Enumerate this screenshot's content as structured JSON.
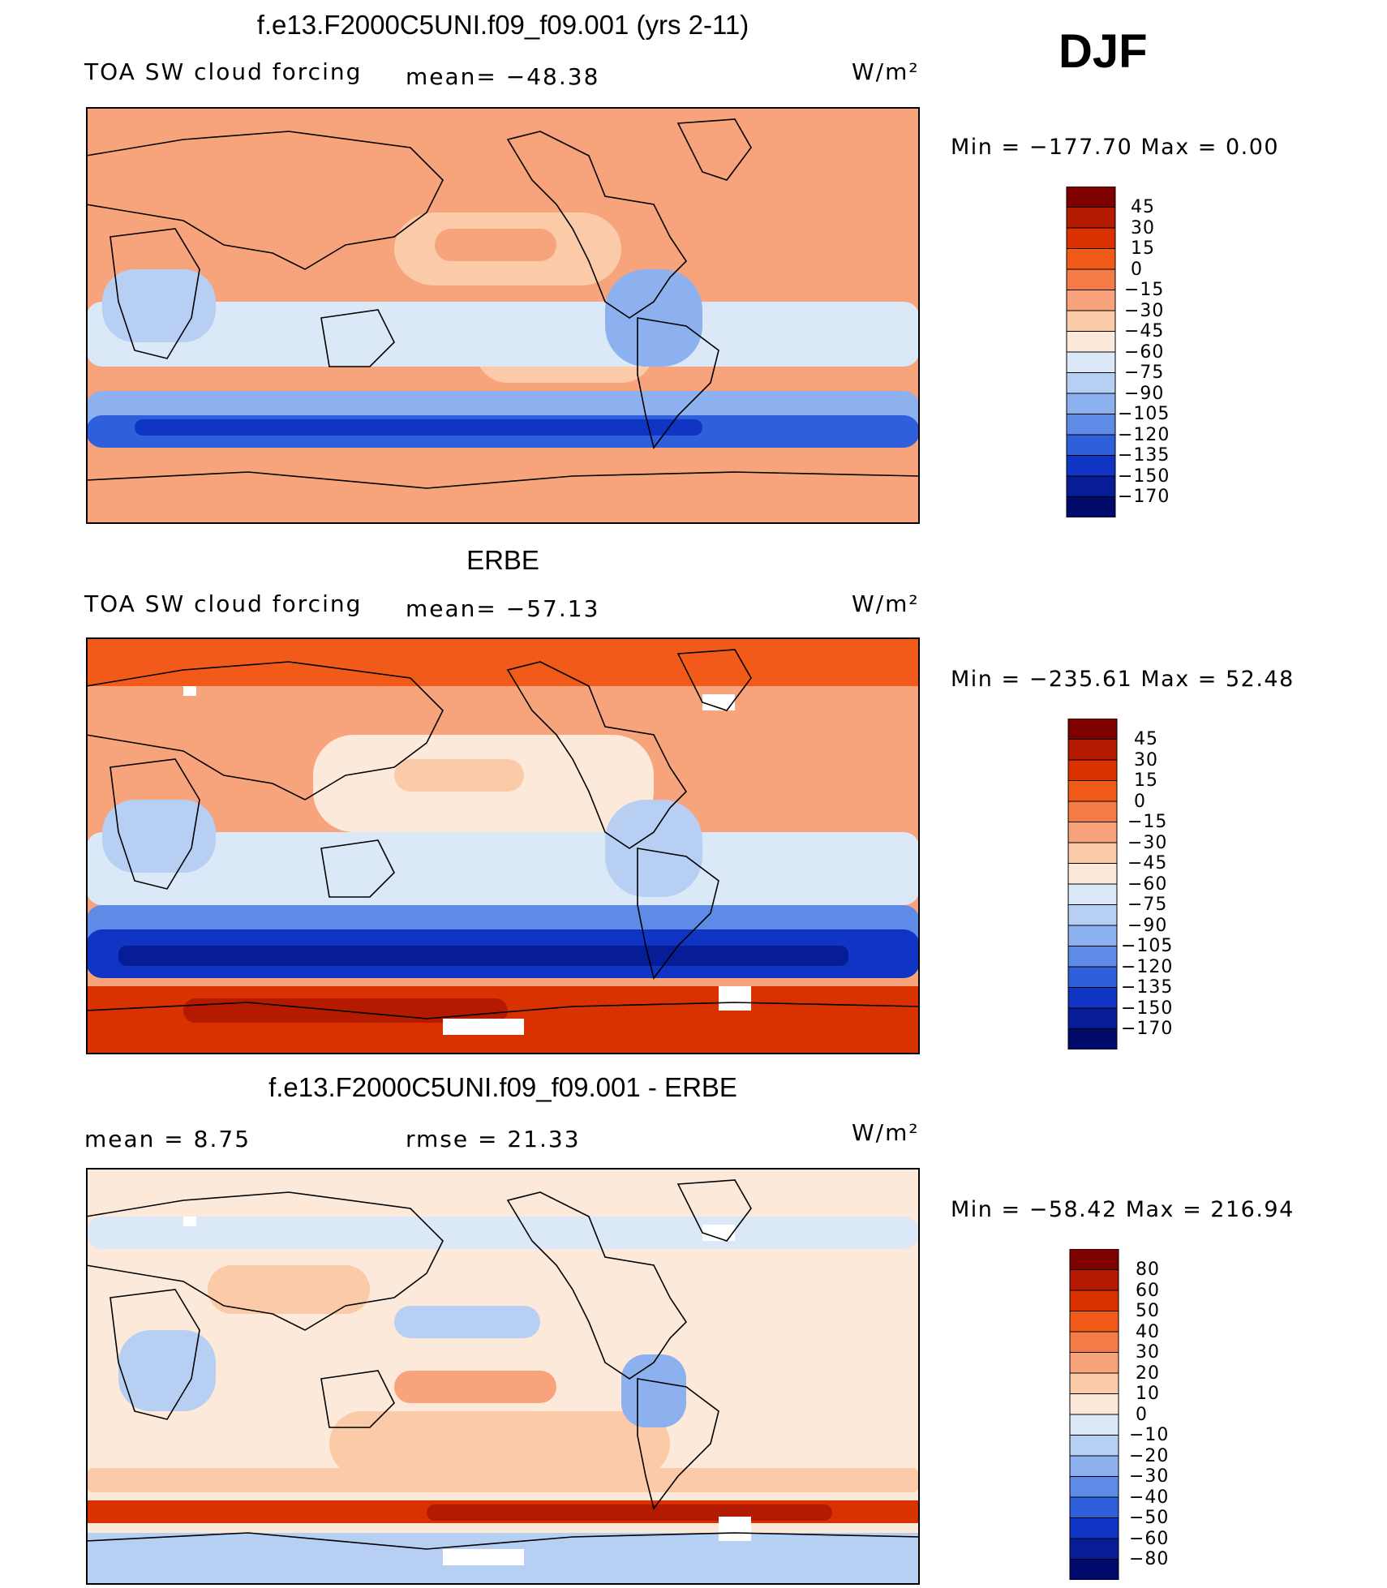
{
  "season": "DJF",
  "units": "W/m²",
  "panels": [
    {
      "title": "f.e13.F2000C5UNI.f09_f09.001 (yrs 2-11)",
      "variable": "TOA SW cloud forcing",
      "stat": "mean= −48.38",
      "minmax": "Min  =  −177.70  Max  =     0.00",
      "colorbar": [
        "45",
        "30",
        "15",
        "0",
        "−15",
        "−30",
        "−45",
        "−60",
        "−75",
        "−90",
        "−105",
        "−120",
        "−135",
        "−150",
        "−170"
      ]
    },
    {
      "title": "ERBE",
      "variable": "TOA SW cloud forcing",
      "stat": "mean= −57.13",
      "minmax": "Min  =  −235.61  Max  =   52.48",
      "colorbar": [
        "45",
        "30",
        "15",
        "0",
        "−15",
        "−30",
        "−45",
        "−60",
        "−75",
        "−90",
        "−105",
        "−120",
        "−135",
        "−150",
        "−170"
      ]
    },
    {
      "title": "f.e13.F2000C5UNI.f09_f09.001 - ERBE",
      "variable": "mean  =     8.75",
      "stat": "rmse  =    21.33",
      "minmax": "Min  =  −58.42  Max  =  216.94",
      "colorbar": [
        "80",
        "60",
        "50",
        "40",
        "30",
        "20",
        "10",
        "0",
        "−10",
        "−20",
        "−30",
        "−40",
        "−50",
        "−60",
        "−80"
      ]
    }
  ],
  "colors": {
    "scale": [
      "#7f0000",
      "#b31a00",
      "#d93200",
      "#f25a1a",
      "#f47a46",
      "#f7a37c",
      "#fbcaa8",
      "#fde9da",
      "#dbe8f7",
      "#b6cff2",
      "#8cb1ee",
      "#5d8be6",
      "#2f5fdb",
      "#1035c4",
      "#061d95",
      "#000a6b"
    ],
    "land": "#000000",
    "missing": "#ffffff"
  }
}
